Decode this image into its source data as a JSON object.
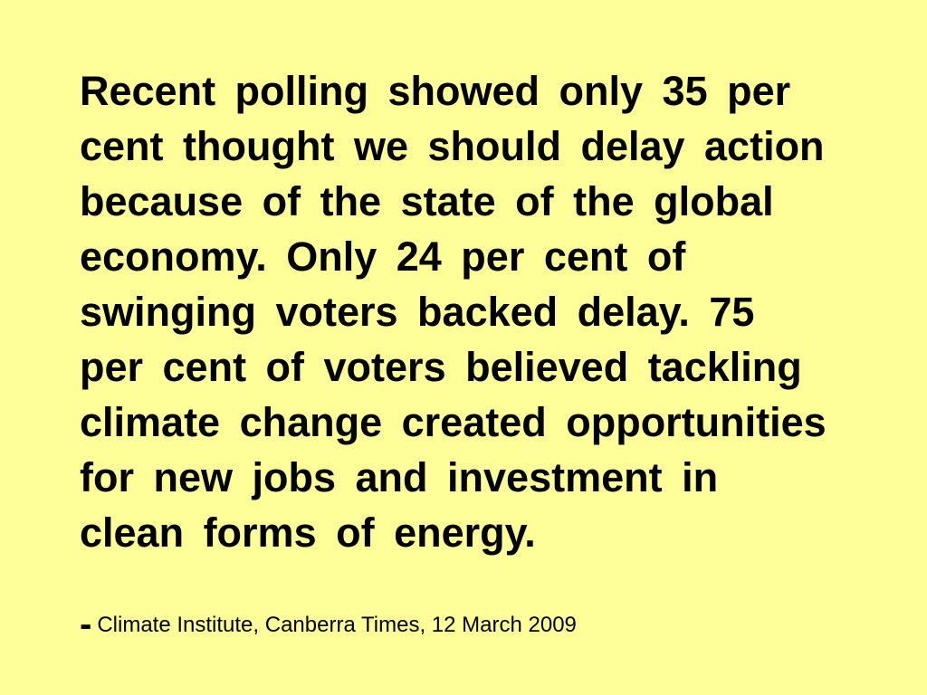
{
  "quote": {
    "lines": [
      "Recent polling showed only 35 per",
      "cent thought we should delay action",
      "because of the state of the global",
      "economy. Only 24 per cent of",
      "swinging voters backed delay. 75",
      "per cent of voters believed tackling",
      "climate change created opportunities",
      "for new jobs and investment in",
      "clean forms of energy."
    ]
  },
  "attribution": {
    "dash": "-",
    "source": "Climate Institute, Canberra Times, 12 March 2009"
  }
}
